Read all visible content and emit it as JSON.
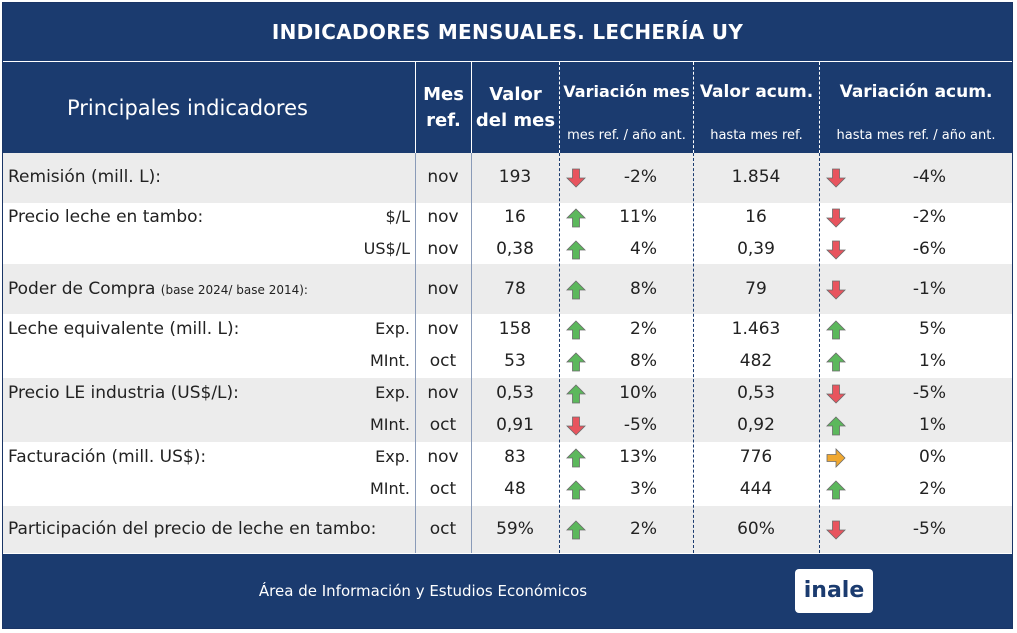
{
  "title": "INDICADORES MENSUALES. LECHERÍA UY",
  "header": {
    "main": "Principales indicadores",
    "mes_ref": "Mes ref.",
    "valor_mes": "Valor del mes",
    "var_mes": "Variación mes",
    "var_mes_sub": "mes ref. / año ant.",
    "valor_acum": "Valor acum.",
    "valor_acum_sub": "hasta mes ref.",
    "var_acum": "Variación acum.",
    "var_acum_sub": "hasta mes ref. / año ant."
  },
  "colors": {
    "navy": "#1b3b6f",
    "up": "#5cb85c",
    "down": "#e8545e",
    "flat": "#f0a830"
  },
  "rows": [
    {
      "label": "Remisión (mill. L):",
      "label_small": "",
      "sub": "",
      "mes": "nov",
      "valor": "193",
      "var_dir": "down",
      "var": "-2%",
      "acum": "1.854",
      "varacum_dir": "down",
      "varacum": "-4%"
    },
    {
      "label": "Precio leche en tambo:",
      "label_small": "",
      "sub": "$/L",
      "mes": "nov",
      "valor": "16",
      "var_dir": "up",
      "var": "11%",
      "acum": "16",
      "varacum_dir": "down",
      "varacum": "-2%"
    },
    {
      "label": "",
      "label_small": "",
      "sub": "US$/L",
      "mes": "nov",
      "valor": "0,38",
      "var_dir": "up",
      "var": "4%",
      "acum": "0,39",
      "varacum_dir": "down",
      "varacum": "-6%"
    },
    {
      "label": "Poder de Compra ",
      "label_small": "(base 2024/ base 2014):",
      "sub": "",
      "mes": "nov",
      "valor": "78",
      "var_dir": "up",
      "var": "8%",
      "acum": "79",
      "varacum_dir": "down",
      "varacum": "-1%"
    },
    {
      "label": "Leche equivalente (mill. L):",
      "label_small": "",
      "sub": "Exp.",
      "mes": "nov",
      "valor": "158",
      "var_dir": "up",
      "var": "2%",
      "acum": "1.463",
      "varacum_dir": "up",
      "varacum": "5%"
    },
    {
      "label": "",
      "label_small": "",
      "sub": "MInt.",
      "mes": "oct",
      "valor": "53",
      "var_dir": "up",
      "var": "8%",
      "acum": "482",
      "varacum_dir": "up",
      "varacum": "1%"
    },
    {
      "label": "Precio LE industria (US$/L):",
      "label_small": "",
      "sub": "Exp.",
      "mes": "nov",
      "valor": "0,53",
      "var_dir": "up",
      "var": "10%",
      "acum": "0,53",
      "varacum_dir": "down",
      "varacum": "-5%"
    },
    {
      "label": "",
      "label_small": "",
      "sub": "MInt.",
      "mes": "oct",
      "valor": "0,91",
      "var_dir": "down",
      "var": "-5%",
      "acum": "0,92",
      "varacum_dir": "up",
      "varacum": "1%"
    },
    {
      "label": "Facturación (mill. US$):",
      "label_small": "",
      "sub": "Exp.",
      "mes": "nov",
      "valor": "83",
      "var_dir": "up",
      "var": "13%",
      "acum": "776",
      "varacum_dir": "right",
      "varacum": "0%"
    },
    {
      "label": "",
      "label_small": "",
      "sub": "MInt.",
      "mes": "oct",
      "valor": "48",
      "var_dir": "up",
      "var": "3%",
      "acum": "444",
      "varacum_dir": "up",
      "varacum": "2%"
    },
    {
      "label": "Participación del precio de leche en tambo:",
      "label_small": "",
      "sub": "",
      "mes": "oct",
      "valor": "59%",
      "var_dir": "up",
      "var": "2%",
      "acum": "60%",
      "varacum_dir": "down",
      "varacum": "-5%"
    }
  ],
  "footer": {
    "text": "Área de Información y Estudios Económicos",
    "logo": "inale"
  }
}
